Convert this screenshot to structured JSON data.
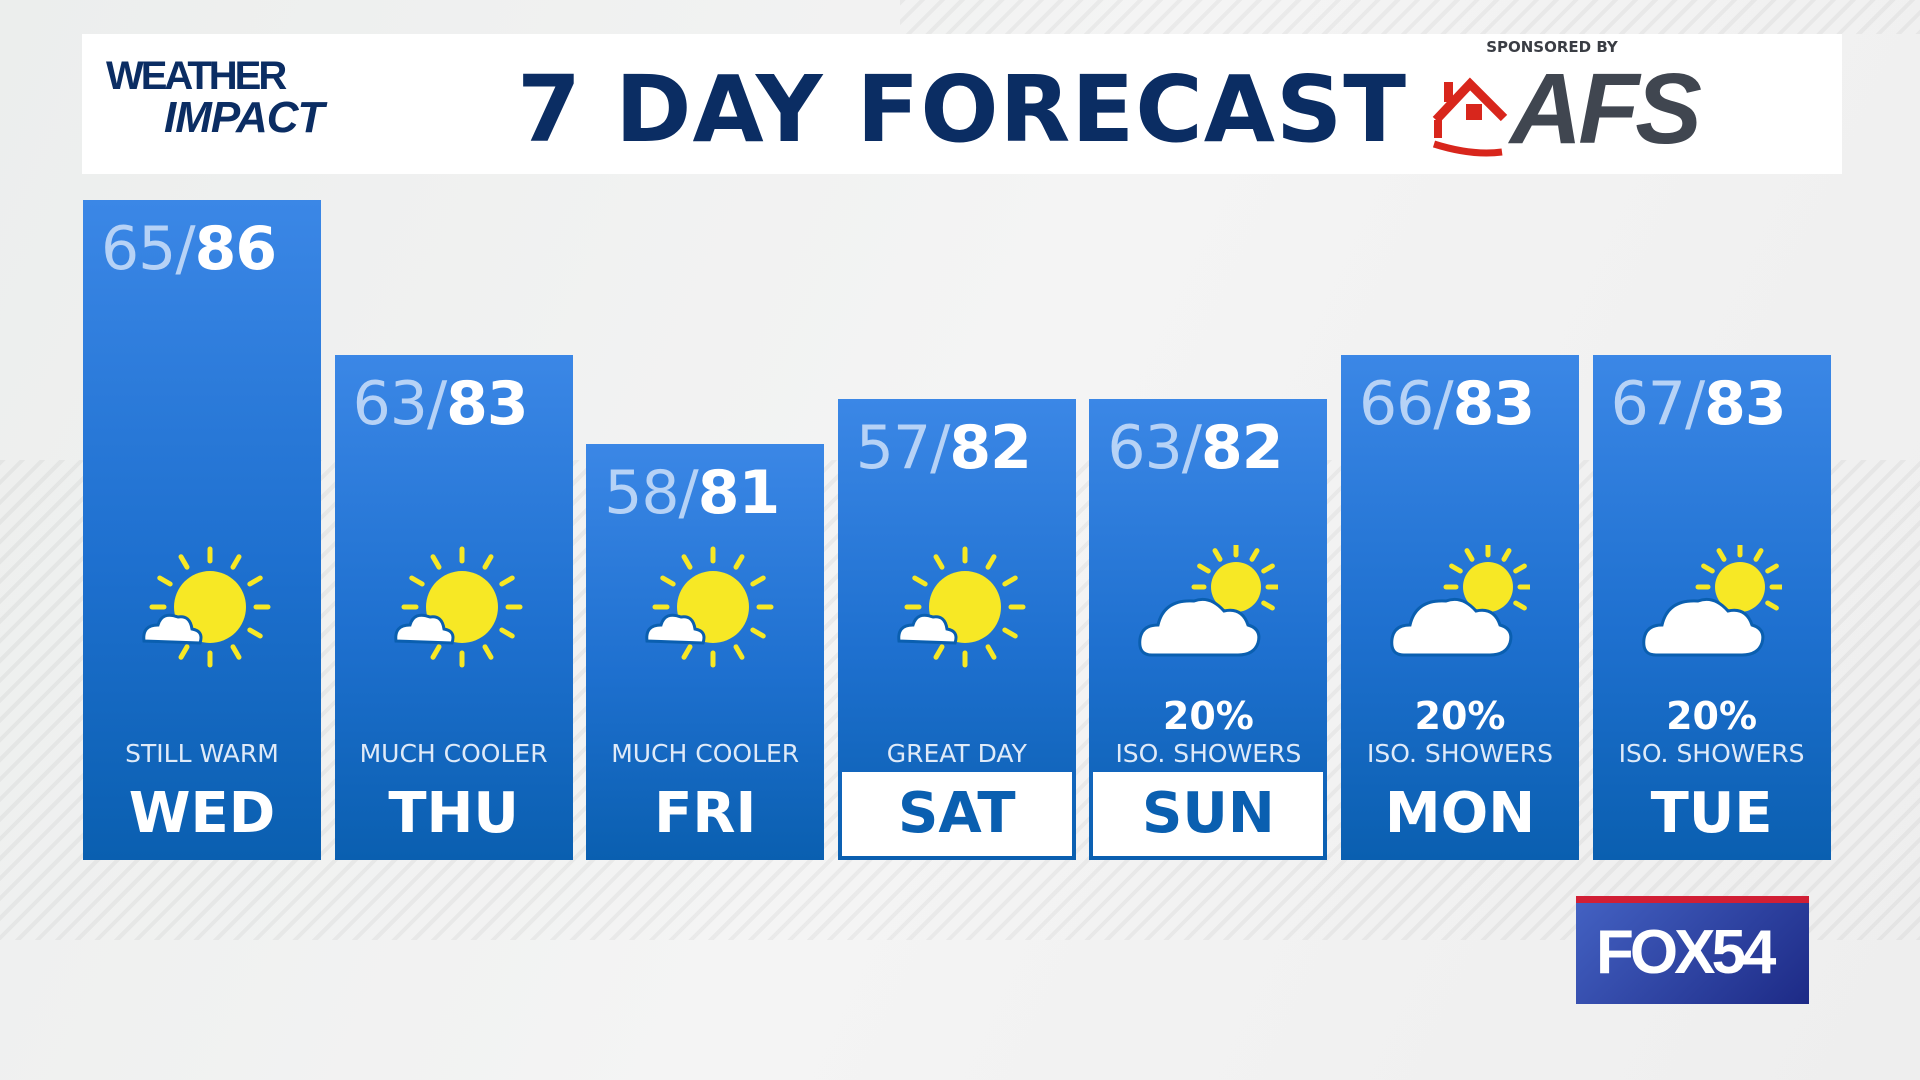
{
  "header": {
    "logo": "WEATHER IMPACT",
    "title": "7 DAY FORECAST",
    "sponsor_label": "SPONSORED BY",
    "sponsor_logo": "AFS"
  },
  "station_logo": "FOX54",
  "colors": {
    "bar_top": "#3b87e6",
    "bar_bottom": "#0a5fb0",
    "title": "#0b2d63",
    "sun": "#f7e825"
  },
  "days": [
    {
      "day": "WED",
      "low": "65",
      "high": "86",
      "desc": "STILL WARM",
      "precip": "",
      "icon": "partly-sunny-icon",
      "highlight": false
    },
    {
      "day": "THU",
      "low": "63",
      "high": "83",
      "desc": "MUCH COOLER",
      "precip": "",
      "icon": "partly-sunny-icon",
      "highlight": false
    },
    {
      "day": "FRI",
      "low": "58",
      "high": "81",
      "desc": "MUCH COOLER",
      "precip": "",
      "icon": "partly-sunny-icon",
      "highlight": false
    },
    {
      "day": "SAT",
      "low": "57",
      "high": "82",
      "desc": "GREAT DAY",
      "precip": "",
      "icon": "partly-sunny-icon",
      "highlight": true
    },
    {
      "day": "SUN",
      "low": "63",
      "high": "82",
      "desc": "ISO. SHOWERS",
      "precip": "20%",
      "icon": "partly-cloudy-icon",
      "highlight": true
    },
    {
      "day": "MON",
      "low": "66",
      "high": "83",
      "desc": "ISO. SHOWERS",
      "precip": "20%",
      "icon": "partly-cloudy-icon",
      "highlight": false
    },
    {
      "day": "TUE",
      "low": "67",
      "high": "83",
      "desc": "ISO. SHOWERS",
      "precip": "20%",
      "icon": "partly-cloudy-icon",
      "highlight": false
    }
  ]
}
